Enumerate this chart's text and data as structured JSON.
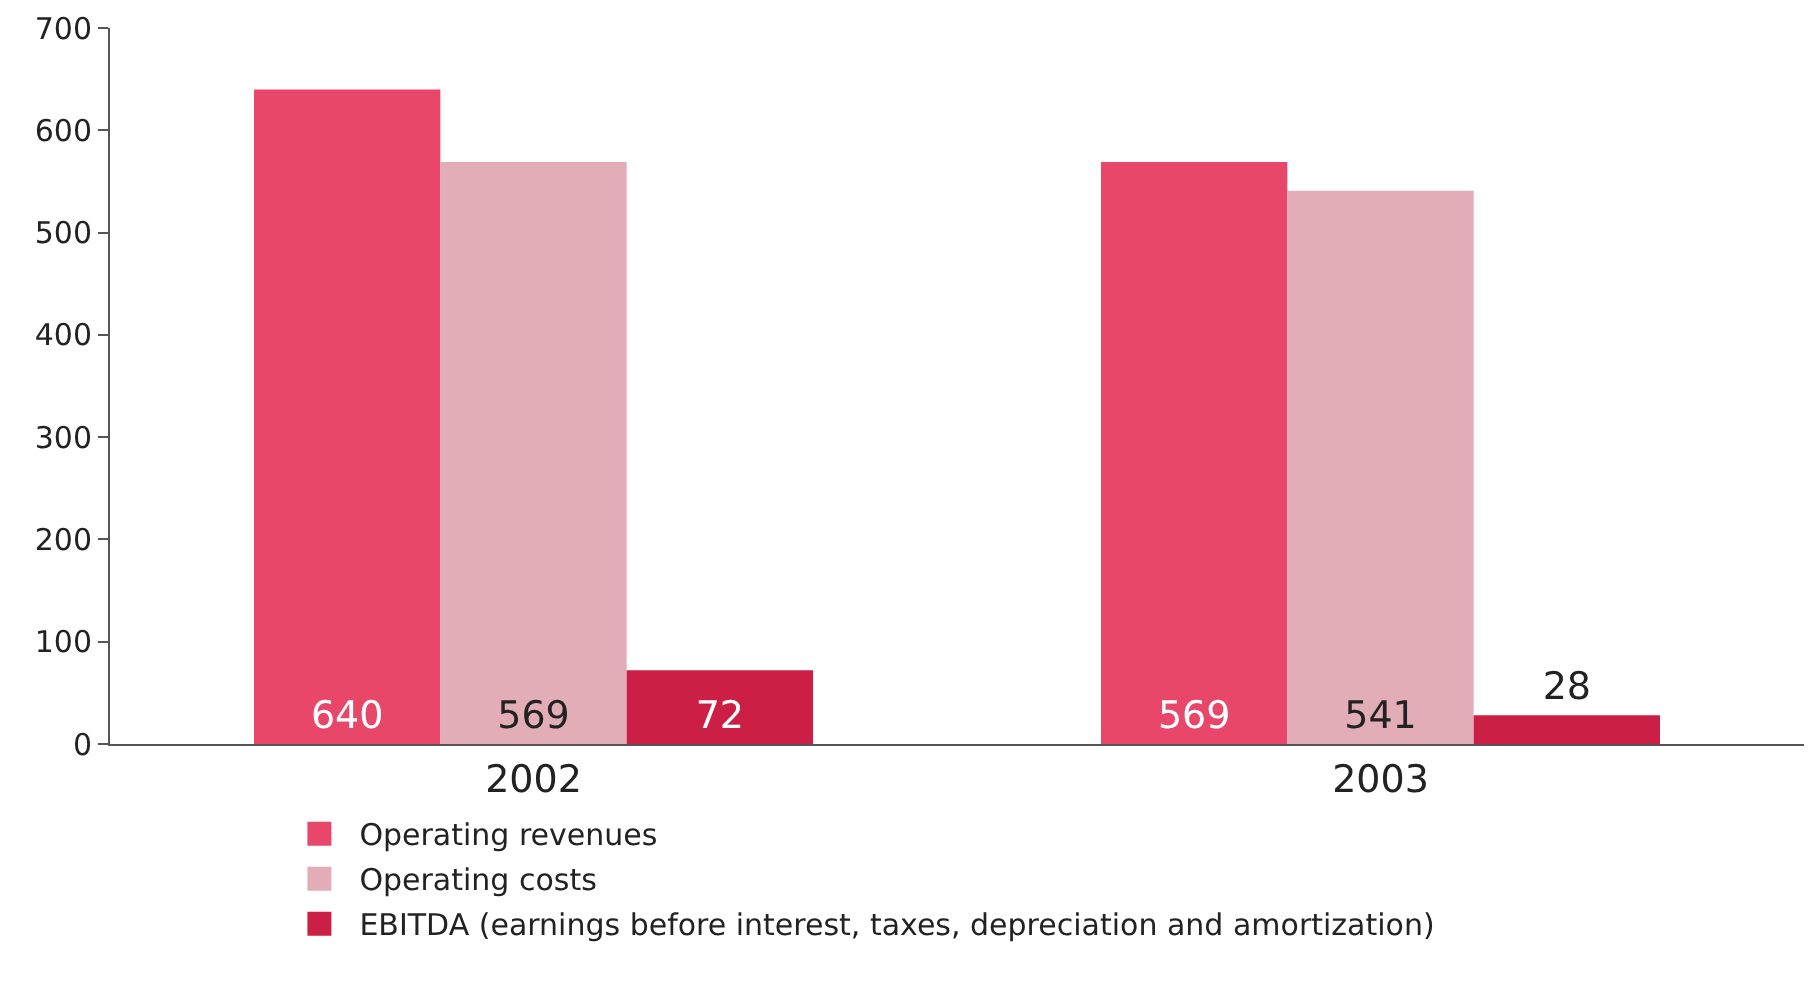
{
  "chart_data": {
    "type": "bar",
    "categories": [
      "2002",
      "2003"
    ],
    "series": [
      {
        "name": "Operating revenues",
        "color": "#e8476a",
        "values": [
          640,
          569
        ]
      },
      {
        "name": "Operating costs",
        "color": "#e3adb8",
        "values": [
          569,
          541
        ]
      },
      {
        "name": "EBITDA (earnings before interest, taxes, depreciation and amortization)",
        "color": "#cc1f45",
        "values": [
          72,
          28
        ]
      }
    ],
    "ylim": [
      0,
      700
    ],
    "yticks": [
      0,
      100,
      200,
      300,
      400,
      500,
      600,
      700
    ],
    "data_labels": true,
    "grid": false,
    "legend": "bottom left"
  }
}
